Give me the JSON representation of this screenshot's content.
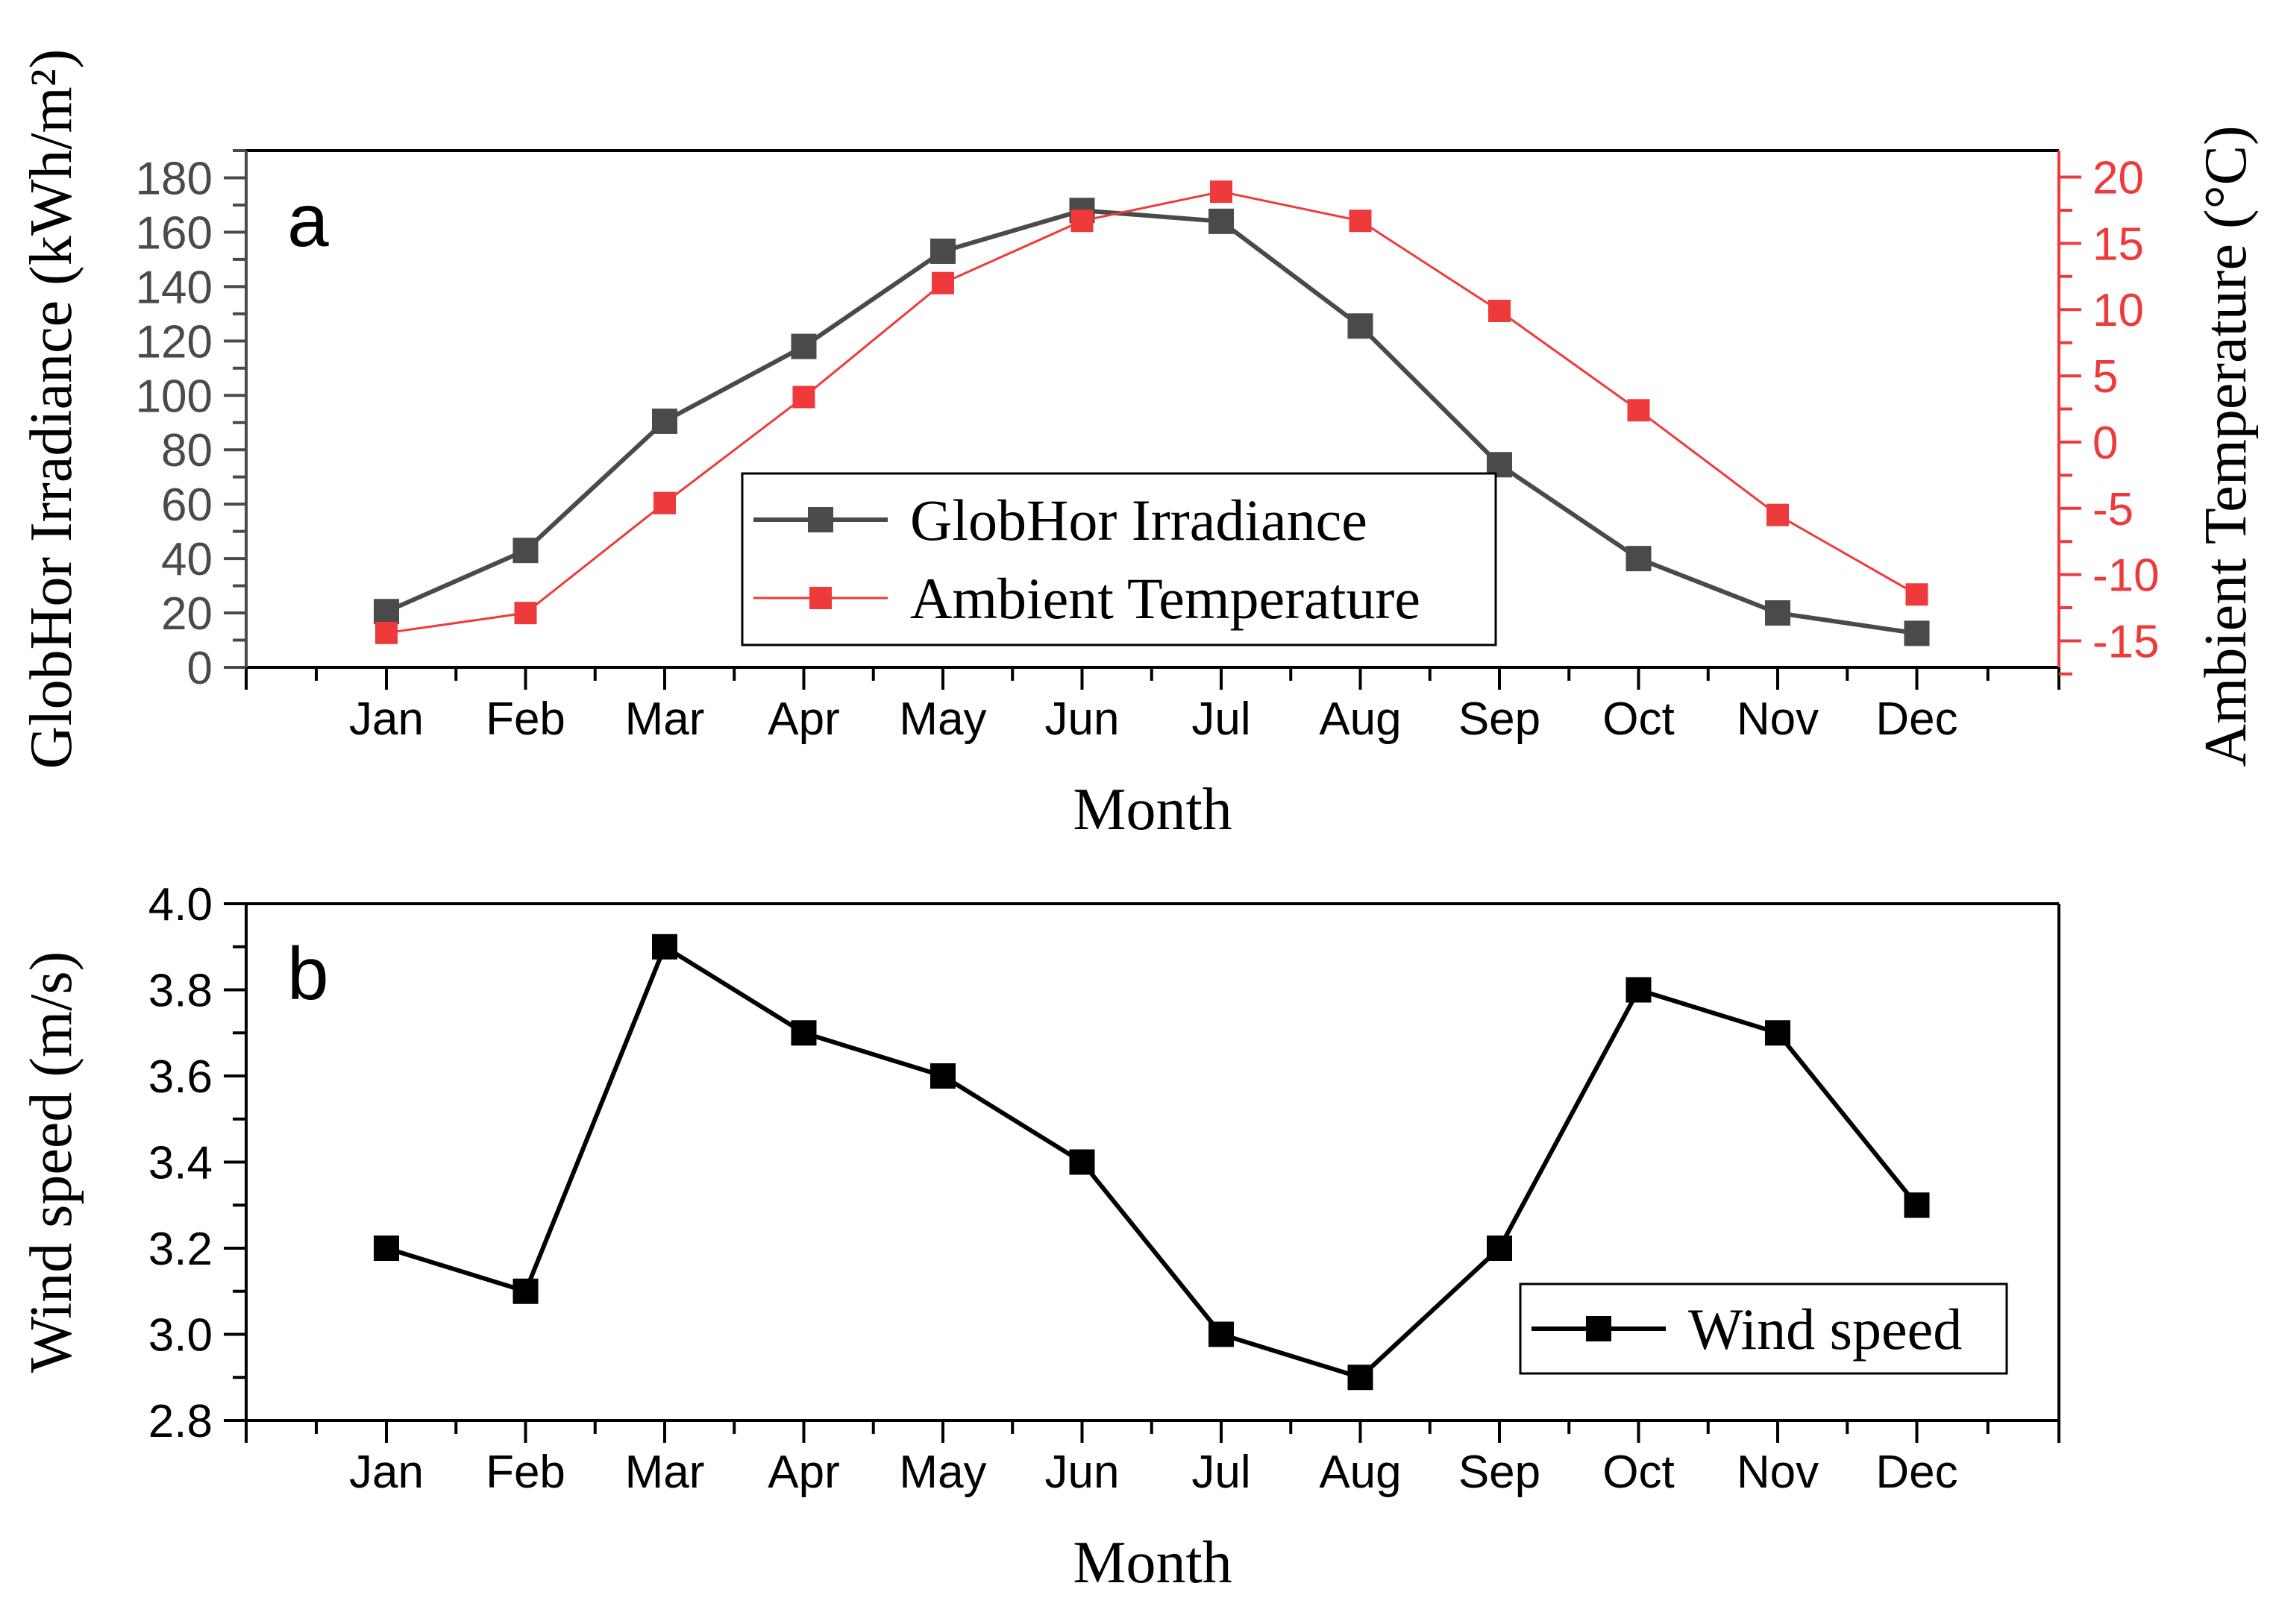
{
  "chart_data": [
    {
      "type": "line",
      "panel_label": "a",
      "xlabel": "Month",
      "ylabel": "GlobHor Irradiance (kWh/m²)",
      "ylabel_right": "Ambient Temperature (°C)",
      "categories": [
        "Jan",
        "Feb",
        "Mar",
        "Apr",
        "May",
        "Jun",
        "Jul",
        "Aug",
        "Sep",
        "Oct",
        "Nov",
        "Dec"
      ],
      "ylim": [
        0,
        190
      ],
      "yticks": [
        0,
        20,
        40,
        60,
        80,
        100,
        120,
        140,
        160,
        180
      ],
      "ylim_right": [
        -17,
        22
      ],
      "yticks_right": [
        -15,
        -10,
        -5,
        0,
        5,
        10,
        15,
        20
      ],
      "series": [
        {
          "name": "GlobHor Irradiance",
          "axis": "left",
          "color": "#4a4a4a",
          "values": [
            20.5,
            43,
            90.5,
            118,
            153,
            168,
            164,
            125.5,
            74.5,
            40,
            20,
            12.5
          ]
        },
        {
          "name": "Ambient Temperature",
          "axis": "right",
          "color": "#ee3a3a",
          "values": [
            -14.4,
            -12.9,
            -4.6,
            3.4,
            12.0,
            16.7,
            18.9,
            16.7,
            9.9,
            2.4,
            -5.5,
            -11.5
          ]
        }
      ],
      "legend": "center"
    },
    {
      "type": "line",
      "panel_label": "b",
      "xlabel": "Month",
      "ylabel": "Wind speed (m/s)",
      "categories": [
        "Jan",
        "Feb",
        "Mar",
        "Apr",
        "May",
        "Jun",
        "Jul",
        "Aug",
        "Sep",
        "Oct",
        "Nov",
        "Dec"
      ],
      "ylim": [
        2.8,
        4.0
      ],
      "yticks": [
        "2.8",
        "3.0",
        "3.2",
        "3.4",
        "3.6",
        "3.8",
        "4.0"
      ],
      "series": [
        {
          "name": "Wind speed",
          "axis": "left",
          "color": "#000000",
          "values": [
            3.2,
            3.1,
            3.9,
            3.7,
            3.6,
            3.4,
            3.0,
            2.9,
            3.2,
            3.8,
            3.7,
            3.3
          ]
        }
      ],
      "legend": "lower-right"
    }
  ]
}
